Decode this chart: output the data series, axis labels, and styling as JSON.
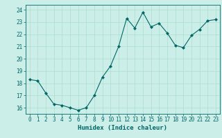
{
  "x": [
    0,
    1,
    2,
    3,
    4,
    5,
    6,
    7,
    8,
    9,
    10,
    11,
    12,
    13,
    14,
    15,
    16,
    17,
    18,
    19,
    20,
    21,
    22,
    23
  ],
  "y": [
    18.3,
    18.2,
    17.2,
    16.3,
    16.2,
    16.0,
    15.8,
    16.0,
    17.0,
    18.5,
    19.4,
    21.0,
    23.3,
    22.5,
    23.8,
    22.6,
    22.9,
    22.1,
    21.1,
    20.9,
    21.9,
    22.4,
    23.1,
    23.2
  ],
  "line_color": "#006666",
  "marker": "D",
  "marker_size": 2.2,
  "bg_color": "#cceee8",
  "grid_color": "#aaddcc",
  "xlabel": "Humidex (Indice chaleur)",
  "ylim": [
    15.5,
    24.4
  ],
  "xlim": [
    -0.5,
    23.5
  ],
  "yticks": [
    16,
    17,
    18,
    19,
    20,
    21,
    22,
    23,
    24
  ],
  "xticks": [
    0,
    1,
    2,
    3,
    4,
    5,
    6,
    7,
    8,
    9,
    10,
    11,
    12,
    13,
    14,
    15,
    16,
    17,
    18,
    19,
    20,
    21,
    22,
    23
  ],
  "tick_color": "#006666",
  "label_color": "#006666",
  "tick_fontsize": 5.5,
  "xlabel_fontsize": 6.5
}
